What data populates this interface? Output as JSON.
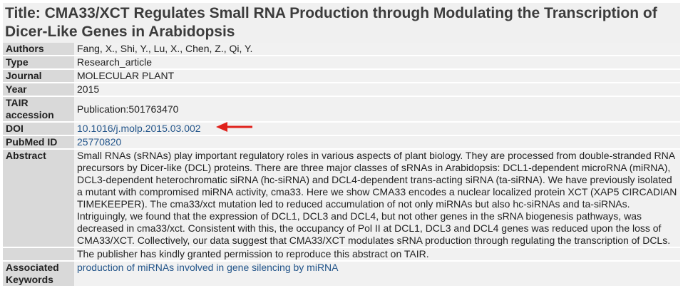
{
  "title": "Title: CMA33/XCT Regulates Small RNA Production through Modulating the Transcription of Dicer-Like Genes in Arabidopsis",
  "rows": {
    "authors": {
      "label": "Authors",
      "value": "Fang, X., Shi, Y., Lu, X., Chen, Z., Qi, Y."
    },
    "type": {
      "label": "Type",
      "value": "Research_article"
    },
    "journal": {
      "label": "Journal",
      "value": "MOLECULAR PLANT"
    },
    "year": {
      "label": "Year",
      "value": "2015"
    },
    "tair": {
      "label": "TAIR accession",
      "value": "Publication:501763470"
    },
    "doi": {
      "label": "DOI",
      "value": "10.1016/j.molp.2015.03.002"
    },
    "pubmed": {
      "label": "PubMed ID",
      "value": "25770820"
    },
    "abstract": {
      "label": "Abstract",
      "value": "Small RNAs (sRNAs) play important regulatory roles in various aspects of plant biology. They are processed from double-stranded RNA precursors by Dicer-like (DCL) proteins. There are three major classes of sRNAs in Arabidopsis: DCL1-dependent microRNA (miRNA), DCL3-dependent heterochromatic siRNA (hc-siRNA) and DCL4-dependent trans-acting siRNA (ta-siRNA). We have previously isolated a mutant with compromised miRNA activity, cma33. Here we show CMA33 encodes a nuclear localized protein XCT (XAP5 CIRCADIAN TIMEKEEPER). The cma33/xct mutation led to reduced accumulation of not only miRNAs but also hc-siRNAs and ta-siRNAs. Intriguingly, we found that the expression of DCL1, DCL3 and DCL4, but not other genes in the sRNA biogenesis pathways, was decreased in cma33/xct. Consistent with this, the occupancy of Pol II at DCL1, DCL3 and DCL4 genes was reduced upon the loss of CMA33/XCT. Collectively, our data suggest that CMA33/XCT modulates sRNA production through regulating the transcription of DCLs.",
      "permission": "The publisher has kindly granted permission to reproduce this abstract on TAIR."
    },
    "keywords": {
      "label": "Associated Keywords",
      "value": "production of miRNAs involved in gene silencing by miRNA"
    }
  },
  "annotation": {
    "icon": "arrow-left-icon",
    "color": "#e0211b"
  },
  "colors": {
    "link": "#23558a",
    "label_bg": "#d9d9d9",
    "value_bg": "#f1f1f1"
  }
}
